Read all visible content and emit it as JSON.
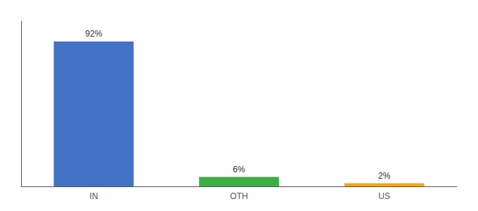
{
  "chart_data": {
    "type": "bar",
    "categories": [
      "IN",
      "OTH",
      "US"
    ],
    "values": [
      92,
      6,
      2
    ],
    "value_labels": [
      "92%",
      "6%",
      "2%"
    ],
    "colors": [
      "#4472C4",
      "#3CB043",
      "#FFA500"
    ],
    "ylim": [
      0,
      105
    ],
    "data_labels": true,
    "tick_labels": "x",
    "grid": false
  }
}
